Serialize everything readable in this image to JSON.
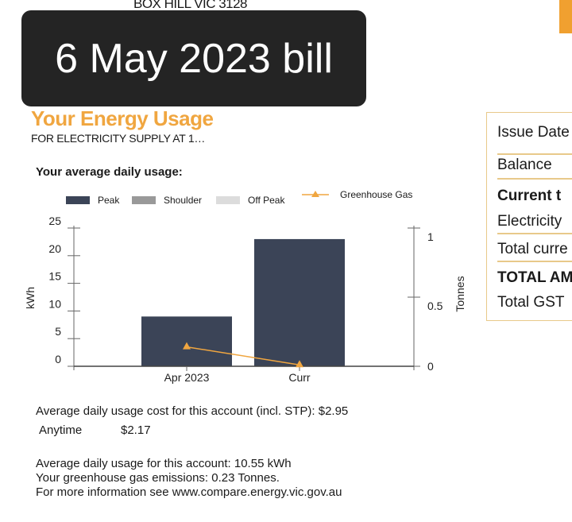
{
  "address_line": "BOX HILL VIC 3128",
  "overlay_title": "6 May 2023 bill",
  "usage": {
    "title": "Your Energy Usage",
    "supply_line": "FOR ELECTRICITY SUPPLY AT 1…",
    "avg_title": "Your average daily usage:"
  },
  "legend": {
    "peak": "Peak",
    "shoulder": "Shoulder",
    "off_peak": "Off Peak",
    "greenhouse": "Greenhouse Gas"
  },
  "colors": {
    "peak": "#3b4457",
    "shoulder": "#999999",
    "off_peak": "#dcdcdc",
    "greenhouse": "#f0a640",
    "accent": "#f0a030"
  },
  "chart_data": {
    "type": "bar",
    "categories": [
      "Apr 2023",
      "Curr"
    ],
    "series": [
      {
        "name": "Peak",
        "axis": "left",
        "values": [
          9,
          23
        ]
      },
      {
        "name": "Greenhouse Gas",
        "axis": "right",
        "type": "line",
        "values": [
          0.14,
          0.01
        ]
      }
    ],
    "ylabel": "kWh",
    "y2label": "Tonnes",
    "ylim": [
      0,
      25
    ],
    "y2lim": [
      0,
      1
    ],
    "yticks": [
      "0",
      "5",
      "10",
      "15",
      "20",
      "25"
    ],
    "y2ticks": [
      "0",
      "0.5",
      "1"
    ],
    "legend_position": "top"
  },
  "info": {
    "cost_line": "Average daily usage cost for this account (incl. STP): $2.95",
    "anytime_label": "Anytime",
    "anytime_value": "$2.17",
    "usage_line": "Average daily usage for this account: 10.55 kWh",
    "emissions_line": "Your greenhouse gas emissions: 0.23 Tonnes.",
    "more_info_line": "For more information see www.compare.energy.vic.gov.au"
  },
  "summary_box": {
    "rows": [
      "Issue Date",
      "Balance",
      "Current t",
      "Electricity",
      "Total curre",
      "TOTAL AM",
      "Total GST"
    ]
  }
}
